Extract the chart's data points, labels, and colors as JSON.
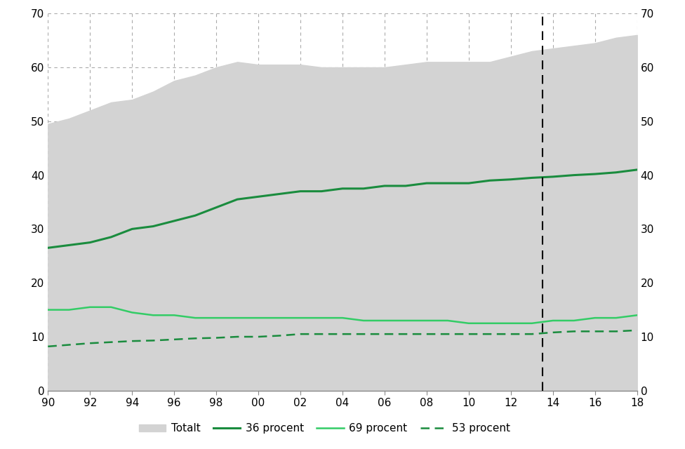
{
  "years": [
    90,
    91,
    92,
    93,
    94,
    95,
    96,
    97,
    98,
    99,
    100,
    101,
    102,
    103,
    104,
    105,
    106,
    107,
    108,
    109,
    110,
    111,
    112,
    113,
    114,
    115,
    116,
    117,
    118
  ],
  "x_labels": [
    "90",
    "92",
    "94",
    "96",
    "98",
    "00",
    "02",
    "04",
    "06",
    "08",
    "10",
    "12",
    "14",
    "16",
    "18"
  ],
  "x_ticks": [
    90,
    92,
    94,
    96,
    98,
    100,
    102,
    104,
    106,
    108,
    110,
    112,
    114,
    116,
    118
  ],
  "totalt": [
    49.5,
    50.5,
    52.0,
    53.5,
    54.0,
    55.5,
    57.5,
    58.5,
    60.0,
    61.0,
    60.5,
    60.5,
    60.5,
    60.0,
    60.0,
    60.0,
    60.0,
    60.5,
    61.0,
    61.0,
    61.0,
    61.0,
    62.0,
    63.0,
    63.5,
    64.0,
    64.5,
    65.5,
    66.0
  ],
  "line_36": [
    26.5,
    27.0,
    27.5,
    28.5,
    30.0,
    30.5,
    31.5,
    32.5,
    34.0,
    35.5,
    36.0,
    36.5,
    37.0,
    37.0,
    37.5,
    37.5,
    38.0,
    38.0,
    38.5,
    38.5,
    38.5,
    39.0,
    39.2,
    39.5,
    39.7,
    40.0,
    40.2,
    40.5,
    41.0
  ],
  "line_69": [
    15.0,
    15.0,
    15.5,
    15.5,
    14.5,
    14.0,
    14.0,
    13.5,
    13.5,
    13.5,
    13.5,
    13.5,
    13.5,
    13.5,
    13.5,
    13.0,
    13.0,
    13.0,
    13.0,
    13.0,
    12.5,
    12.5,
    12.5,
    12.5,
    13.0,
    13.0,
    13.5,
    13.5,
    14.0
  ],
  "line_53": [
    8.2,
    8.5,
    8.8,
    9.0,
    9.2,
    9.3,
    9.5,
    9.7,
    9.8,
    10.0,
    10.0,
    10.2,
    10.5,
    10.5,
    10.5,
    10.5,
    10.5,
    10.5,
    10.5,
    10.5,
    10.5,
    10.5,
    10.5,
    10.5,
    10.8,
    11.0,
    11.0,
    11.0,
    11.2
  ],
  "dashed_line_x": 113.5,
  "ylim": [
    0,
    70
  ],
  "yticks": [
    0,
    10,
    20,
    30,
    40,
    50,
    60,
    70
  ],
  "color_totalt": "#d3d3d3",
  "color_36": "#1a8c3e",
  "color_69": "#33cc66",
  "color_53_dashed": "#1a8c3e",
  "bg_color": "#ffffff",
  "grid_color": "#aaaaaa",
  "legend_labels": [
    "Totalt",
    "36 procent",
    "69 procent",
    "53 procent"
  ]
}
